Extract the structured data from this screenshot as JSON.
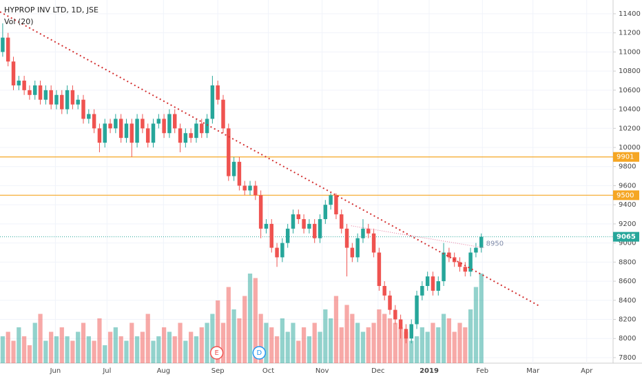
{
  "chart_data": {
    "type": "candlestick",
    "title": "HYPROP INV LTD, 1D, JSE",
    "volume_label": "Vol (20)",
    "up_color": "#26a69a",
    "down_color": "#ef5350",
    "ylim": [
      7742,
      11544
    ],
    "yticks": [
      7800,
      8000,
      8200,
      8400,
      8600,
      8800,
      9000,
      9200,
      9400,
      9600,
      9800,
      10000,
      10200,
      10400,
      10600,
      10800,
      11000,
      11200,
      11400
    ],
    "xlim": [
      -0.5,
      113.5
    ],
    "xticks": [
      {
        "value": 9.8,
        "label": "Jun"
      },
      {
        "value": 19.4,
        "label": "Jul"
      },
      {
        "value": 29.9,
        "label": "Aug"
      },
      {
        "value": 40,
        "label": "Sep"
      },
      {
        "value": 49.4,
        "label": "Oct"
      },
      {
        "value": 59.4,
        "label": "Nov"
      },
      {
        "value": 69.8,
        "label": "Dec"
      },
      {
        "value": 79.3,
        "label": "2019"
      },
      {
        "value": 89.2,
        "label": "Feb"
      },
      {
        "value": 98.6,
        "label": "Mar"
      },
      {
        "value": 108.6,
        "label": "Apr"
      }
    ],
    "grid": true,
    "ohlc": [
      [
        11000,
        11300,
        10950,
        11150
      ],
      [
        11150,
        11200,
        10850,
        10900
      ],
      [
        10900,
        10950,
        10600,
        10650
      ],
      [
        10650,
        10750,
        10600,
        10700
      ],
      [
        10700,
        10750,
        10550,
        10600
      ],
      [
        10600,
        10650,
        10500,
        10550
      ],
      [
        10550,
        10700,
        10500,
        10650
      ],
      [
        10650,
        10700,
        10450,
        10500
      ],
      [
        10500,
        10650,
        10450,
        10600
      ],
      [
        10600,
        10650,
        10400,
        10450
      ],
      [
        10450,
        10600,
        10400,
        10550
      ],
      [
        10550,
        10600,
        10350,
        10400
      ],
      [
        10400,
        10650,
        10350,
        10600
      ],
      [
        10600,
        10650,
        10400,
        10450
      ],
      [
        10450,
        10550,
        10400,
        10500
      ],
      [
        10500,
        10550,
        10250,
        10300
      ],
      [
        10300,
        10400,
        10250,
        10350
      ],
      [
        10350,
        10400,
        10150,
        10200
      ],
      [
        10200,
        10250,
        9950,
        10050
      ],
      [
        10050,
        10300,
        10000,
        10250
      ],
      [
        10250,
        10300,
        10150,
        10200
      ],
      [
        10200,
        10350,
        10150,
        10300
      ],
      [
        10300,
        10350,
        10050,
        10100
      ],
      [
        10100,
        10300,
        10050,
        10250
      ],
      [
        10250,
        10300,
        9900,
        10050
      ],
      [
        10050,
        10350,
        10000,
        10300
      ],
      [
        10300,
        10350,
        10150,
        10200
      ],
      [
        10200,
        10250,
        10000,
        10050
      ],
      [
        10050,
        10300,
        10000,
        10250
      ],
      [
        10250,
        10350,
        10200,
        10300
      ],
      [
        10300,
        10350,
        10100,
        10150
      ],
      [
        10150,
        10400,
        10100,
        10350
      ],
      [
        10350,
        10400,
        10150,
        10200
      ],
      [
        10200,
        10250,
        9950,
        10050
      ],
      [
        10050,
        10200,
        10000,
        10150
      ],
      [
        10150,
        10200,
        10050,
        10100
      ],
      [
        10100,
        10300,
        10050,
        10250
      ],
      [
        10250,
        10300,
        10100,
        10150
      ],
      [
        10150,
        10350,
        10100,
        10300
      ],
      [
        10300,
        10750,
        10250,
        10650
      ],
      [
        10650,
        10700,
        10450,
        10500
      ],
      [
        10500,
        10550,
        10150,
        10200
      ],
      [
        10200,
        10250,
        9650,
        9700
      ],
      [
        9700,
        9900,
        9650,
        9850
      ],
      [
        9850,
        9900,
        9550,
        9600
      ],
      [
        9600,
        9650,
        9500,
        9550
      ],
      [
        9550,
        9650,
        9500,
        9600
      ],
      [
        9600,
        9650,
        9450,
        9500
      ],
      [
        9500,
        9550,
        9050,
        9150
      ],
      [
        9150,
        9250,
        9100,
        9200
      ],
      [
        9200,
        9250,
        8900,
        8950
      ],
      [
        8950,
        9000,
        8750,
        8850
      ],
      [
        8850,
        9050,
        8800,
        9000
      ],
      [
        9000,
        9200,
        8950,
        9150
      ],
      [
        9150,
        9350,
        9100,
        9300
      ],
      [
        9300,
        9350,
        9200,
        9250
      ],
      [
        9250,
        9300,
        9100,
        9150
      ],
      [
        9150,
        9250,
        9100,
        9200
      ],
      [
        9200,
        9250,
        9000,
        9050
      ],
      [
        9050,
        9300,
        9000,
        9250
      ],
      [
        9250,
        9450,
        9200,
        9400
      ],
      [
        9400,
        9520,
        9350,
        9500
      ],
      [
        9500,
        9520,
        9250,
        9300
      ],
      [
        9300,
        9350,
        9100,
        9150
      ],
      [
        9150,
        9200,
        8650,
        8950
      ],
      [
        8950,
        9000,
        8800,
        8850
      ],
      [
        8850,
        9100,
        8800,
        9050
      ],
      [
        9050,
        9250,
        9000,
        9150
      ],
      [
        9150,
        9200,
        9050,
        9100
      ],
      [
        9100,
        9150,
        8850,
        8900
      ],
      [
        8900,
        8950,
        8500,
        8550
      ],
      [
        8550,
        8600,
        8400,
        8450
      ],
      [
        8450,
        8500,
        8250,
        8300
      ],
      [
        8300,
        8350,
        8150,
        8200
      ],
      [
        8200,
        8250,
        8000,
        8100
      ],
      [
        8100,
        8150,
        7950,
        8000
      ],
      [
        8000,
        8200,
        7950,
        8150
      ],
      [
        8150,
        8500,
        8100,
        8450
      ],
      [
        8450,
        8600,
        8400,
        8550
      ],
      [
        8550,
        8700,
        8500,
        8650
      ],
      [
        8650,
        8700,
        8450,
        8500
      ],
      [
        8500,
        8650,
        8450,
        8600
      ],
      [
        8600,
        9000,
        8550,
        8900
      ],
      [
        8900,
        8950,
        8800,
        8850
      ],
      [
        8850,
        8900,
        8750,
        8800
      ],
      [
        8800,
        8850,
        8700,
        8750
      ],
      [
        8750,
        8800,
        8650,
        8700
      ],
      [
        8700,
        8950,
        8650,
        8900
      ],
      [
        8900,
        9000,
        8850,
        8950
      ],
      [
        8950,
        9100,
        8900,
        9065
      ]
    ],
    "volume": [
      30,
      35,
      25,
      40,
      30,
      20,
      45,
      55,
      25,
      35,
      30,
      40,
      30,
      25,
      35,
      45,
      30,
      25,
      50,
      20,
      35,
      40,
      30,
      25,
      45,
      30,
      35,
      55,
      25,
      30,
      40,
      35,
      30,
      45,
      25,
      35,
      30,
      40,
      45,
      55,
      70,
      45,
      85,
      60,
      50,
      75,
      100,
      95,
      55,
      45,
      40,
      30,
      50,
      35,
      45,
      25,
      40,
      30,
      45,
      35,
      60,
      50,
      75,
      40,
      65,
      55,
      45,
      35,
      40,
      45,
      60,
      55,
      50,
      45,
      40,
      35,
      25,
      30,
      40,
      35,
      45,
      40,
      55,
      50,
      35,
      45,
      40,
      60,
      85,
      100
    ],
    "levels": [
      {
        "value": 9901,
        "color": "#f5a623"
      },
      {
        "value": 9500,
        "color": "#f5a623"
      }
    ],
    "last_price": 9065,
    "last_color": "#26a69a",
    "trendline": {
      "x": [
        -0.5,
        99.8
      ],
      "y": [
        11420,
        8340
      ],
      "color": "#d32f2f"
    },
    "short_line": {
      "x": [
        64.8,
        89.5
      ],
      "y": [
        9180,
        8950
      ],
      "color": "#e57399"
    },
    "events": [
      {
        "label": "E",
        "x": 39.8,
        "color": "#ef5350"
      },
      {
        "label": "D",
        "x": 47.7,
        "color": "#2196f3"
      }
    ]
  }
}
